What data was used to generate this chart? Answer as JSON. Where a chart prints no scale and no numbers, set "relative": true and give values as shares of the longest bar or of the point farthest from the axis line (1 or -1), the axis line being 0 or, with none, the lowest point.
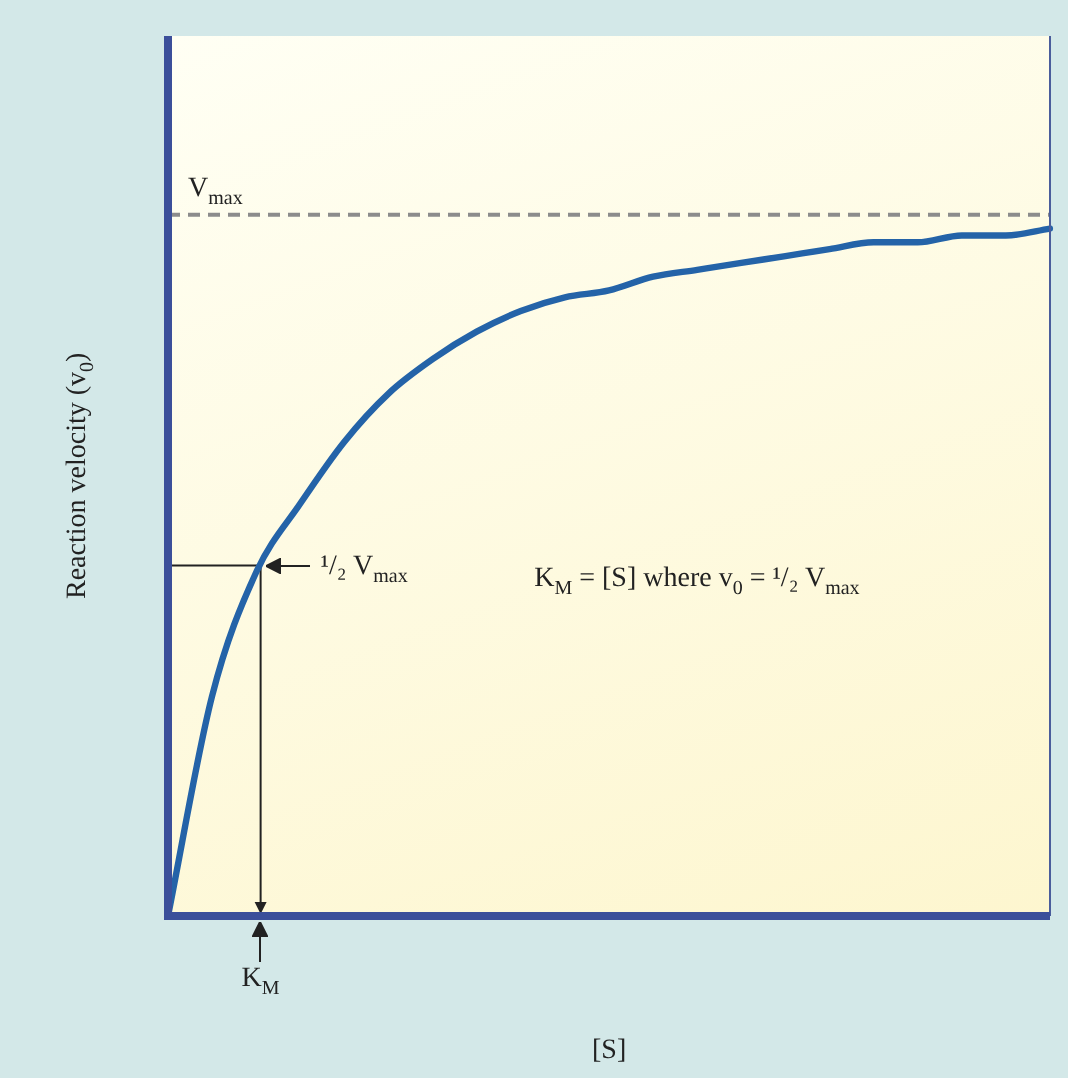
{
  "chart_data": {
    "type": "line",
    "relative": true,
    "xlabel": "[S]",
    "ylabel": "Reaction velocity (v$_{0}$)",
    "categories": [
      null,
      null,
      null,
      null,
      null,
      null,
      null,
      null,
      null,
      null,
      null,
      null,
      null,
      null,
      null,
      null,
      null,
      null,
      null,
      null,
      null
    ],
    "series": [
      {
        "color": "#2463a8",
        "values": [
          0,
          0.32,
          0.5,
          0.6,
          0.69,
          0.76,
          0.81,
          0.85,
          0.88,
          0.9,
          0.91,
          0.93,
          0.94,
          0.95,
          0.96,
          0.97,
          0.98,
          0.98,
          0.99,
          0.99,
          1
        ]
      }
    ],
    "marker": "none",
    "line_style": "solid",
    "ref_lines": [
      {
        "axis": "y",
        "value": 1.02,
        "label": "V$_{max}$",
        "color": "#8c8c8c",
        "line_style": "dashed"
      },
      {
        "axis": "y",
        "value": 0.51,
        "label": "¹/₂ V$_{max}$",
        "color": "#222222",
        "line_style": "solid"
      }
    ],
    "annotations": [
      "K$_{M}$",
      "K$_{M}$ = [S] where v$_{0}$ = ¹/₂ V$_{max}$"
    ]
  }
}
